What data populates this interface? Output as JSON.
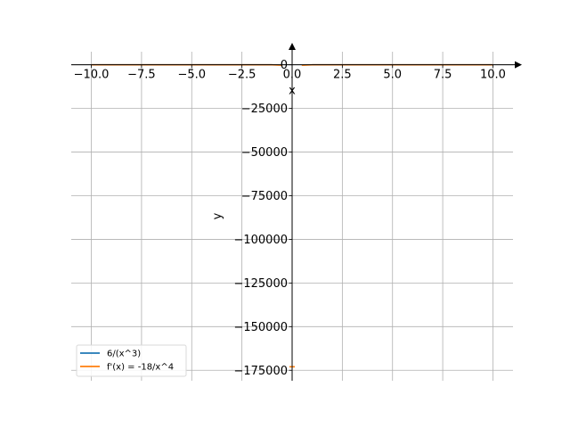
{
  "chart_data": {
    "type": "line",
    "xlabel": "x",
    "ylabel": "y",
    "xlim": [
      -11,
      11
    ],
    "ylim": [
      -181000,
      7500
    ],
    "grid": true,
    "legend_placement": "lower-left",
    "x_ticks": [
      -10.0,
      -7.5,
      -5.0,
      -2.5,
      0.0,
      2.5,
      5.0,
      7.5,
      10.0
    ],
    "x_tick_labels": [
      "−10.0",
      "−7.5",
      "−5.0",
      "−2.5",
      "0.0",
      "2.5",
      "5.0",
      "7.5",
      "10.0"
    ],
    "y_ticks": [
      0,
      -25000,
      -50000,
      -75000,
      -100000,
      -125000,
      -150000,
      -175000
    ],
    "y_tick_labels": [
      "0",
      "−25000",
      "−50000",
      "−75000",
      "−100000",
      "−125000",
      "−150000",
      "−175000"
    ],
    "series": [
      {
        "name": "6/(x^3)",
        "color": "#1f77b4",
        "x": [
          -10,
          -8,
          -6,
          -4,
          -3,
          -2,
          -1.5,
          -1,
          1,
          1.5,
          2,
          3,
          4,
          6,
          8,
          10
        ],
        "values": [
          -0.006,
          -0.0117,
          -0.0278,
          -0.0938,
          -0.222,
          -0.75,
          -1.78,
          -6,
          6,
          1.78,
          0.75,
          0.222,
          0.0938,
          0.0278,
          0.0117,
          0.006
        ]
      },
      {
        "name": "f'(x) = -18/x^4",
        "color": "#ff7f0e",
        "x": [
          -10,
          -8,
          -6,
          -4,
          -3,
          -2,
          -1.5,
          -1,
          -0.5,
          0.5,
          1,
          1.5,
          2,
          3,
          4,
          6,
          8,
          10
        ],
        "values": [
          -0.0018,
          -0.0044,
          -0.0139,
          -0.0703,
          -0.222,
          -1.125,
          -3.56,
          -18,
          -288,
          -288,
          -18,
          -3.56,
          -1.125,
          -0.222,
          -0.0703,
          -0.0139,
          -0.0044,
          -0.0018
        ]
      }
    ],
    "outliers": [
      {
        "series": 1,
        "x": 0.0,
        "y": -173000
      }
    ]
  }
}
